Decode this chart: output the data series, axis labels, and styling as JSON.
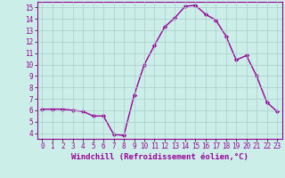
{
  "x": [
    0,
    1,
    2,
    3,
    4,
    5,
    6,
    7,
    8,
    9,
    10,
    11,
    12,
    13,
    14,
    15,
    16,
    17,
    18,
    19,
    20,
    21,
    22,
    23
  ],
  "y": [
    6.1,
    6.1,
    6.1,
    6.0,
    5.9,
    5.5,
    5.5,
    3.9,
    3.8,
    7.3,
    10.0,
    11.7,
    13.3,
    14.1,
    15.1,
    15.2,
    14.4,
    13.9,
    12.5,
    10.4,
    10.8,
    9.0,
    6.7,
    5.9
  ],
  "line_color": "#990099",
  "marker": "D",
  "marker_size": 2.2,
  "linewidth": 1.0,
  "xlabel": "Windchill (Refroidissement éolien,°C)",
  "xlabel_fontsize": 6.5,
  "xlabel_color": "#990099",
  "bg_color": "#cceee8",
  "grid_color": "#aacccc",
  "tick_color": "#990099",
  "xlim": [
    -0.5,
    23.5
  ],
  "ylim": [
    3.5,
    15.5
  ],
  "yticks": [
    4,
    5,
    6,
    7,
    8,
    9,
    10,
    11,
    12,
    13,
    14,
    15
  ],
  "xticks": [
    0,
    1,
    2,
    3,
    4,
    5,
    6,
    7,
    8,
    9,
    10,
    11,
    12,
    13,
    14,
    15,
    16,
    17,
    18,
    19,
    20,
    21,
    22,
    23
  ],
  "tick_fontsize": 5.5
}
